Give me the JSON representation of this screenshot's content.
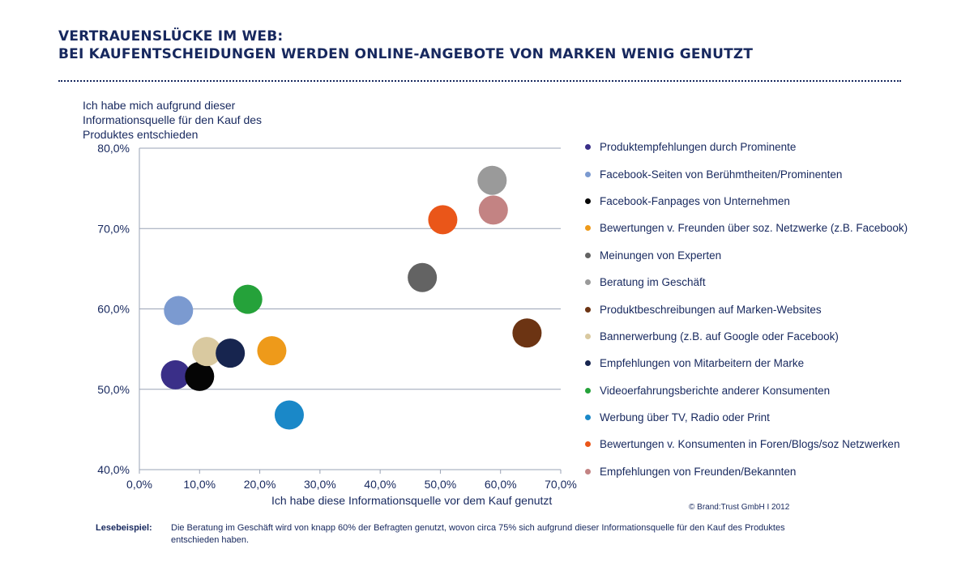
{
  "title_lines": [
    "VERTRAUENSLÜCKE IM WEB:",
    "BEI KAUFENTSCHEIDUNGEN WERDEN ONLINE-ANGEBOTE VON MARKEN WENIG GENUTZT"
  ],
  "copyright": "© Brand:Trust GmbH  I 2012",
  "reading_example": {
    "label": "Lesebeispiel:",
    "text": "Die Beratung im Geschäft wird von knapp 60% der Befragten genutzt, wovon circa 75% sich aufgrund dieser Informationsquelle für den Kauf des Produktes entschieden haben."
  },
  "chart_data": {
    "type": "scatter",
    "xlabel": "Ich habe diese Informationsquelle vor dem Kauf genutzt",
    "ylabel": "Ich habe mich aufgrund dieser Informationsquelle für den Kauf des Produktes entschieden",
    "xlim": [
      0,
      70
    ],
    "ylim": [
      40,
      80
    ],
    "x_ticks": [
      "0,0%",
      "10,0%",
      "20,0%",
      "30,0%",
      "40,0%",
      "50,0%",
      "60,0%",
      "70,0%"
    ],
    "y_ticks": [
      "40,0%",
      "50,0%",
      "60,0%",
      "70,0%",
      "80,0%"
    ],
    "grid": "horizontal",
    "legend_position": "right",
    "series": [
      {
        "name": "Produktempfehlungen durch Prominente",
        "color": "#3a2f88",
        "x": 6.0,
        "y": 51.8
      },
      {
        "name": "Facebook-Seiten von Berühmtheiten/Prominenten",
        "color": "#7b9ad0",
        "x": 6.5,
        "y": 59.8
      },
      {
        "name": "Facebook-Fanpages von Unternehmen",
        "color": "#050505",
        "x": 10.0,
        "y": 51.6
      },
      {
        "name": "Bewertungen v. Freunden über soz. Netzwerke (z.B. Facebook)",
        "color": "#ee9a1a",
        "x": 22.0,
        "y": 54.8
      },
      {
        "name": "Meinungen von Experten",
        "color": "#636363",
        "x": 47.0,
        "y": 63.9
      },
      {
        "name": "Beratung im Geschäft",
        "color": "#9a9a9a",
        "x": 58.6,
        "y": 76.0
      },
      {
        "name": "Produktbeschreibungen auf Marken-Websites",
        "color": "#6c3413",
        "x": 64.4,
        "y": 57.0
      },
      {
        "name": "Bannerwerbung (z.B. auf Google oder Facebook)",
        "color": "#d9c9a0",
        "x": 11.2,
        "y": 54.7
      },
      {
        "name": "Empfehlungen von Mitarbeitern der Marke",
        "color": "#17254f",
        "x": 15.1,
        "y": 54.5
      },
      {
        "name": "Videoerfahrungsberichte anderer Konsumenten",
        "color": "#25a23a",
        "x": 18.0,
        "y": 61.2
      },
      {
        "name": "Werbung über TV, Radio oder Print",
        "color": "#1a88c8",
        "x": 24.9,
        "y": 46.8
      },
      {
        "name": "Bewertungen v. Konsumenten in Foren/Blogs/soz Netzwerken",
        "color": "#ea5619",
        "x": 50.4,
        "y": 71.1
      },
      {
        "name": "Empfehlungen von Freunden/Bekannten",
        "color": "#c38383",
        "x": 58.8,
        "y": 72.3
      }
    ]
  }
}
